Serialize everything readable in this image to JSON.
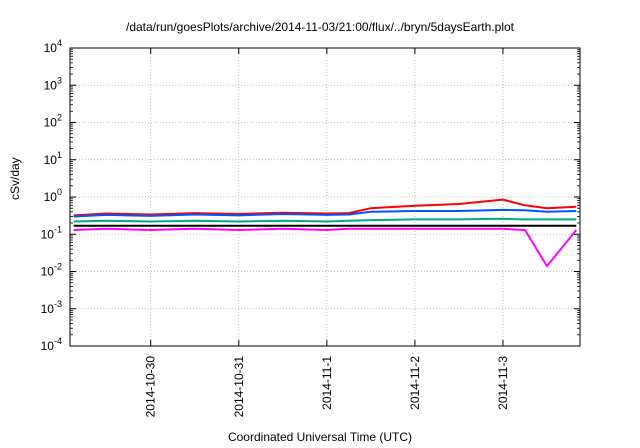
{
  "chart_data": {
    "type": "line",
    "title": "/data/run/goesPlots/archive/2014-11-03/21:00/flux/../bryn/5daysEarth.plot",
    "xlabel": "Coordinated Universal Time (UTC)",
    "ylabel": "cSv/day",
    "yscale": "log",
    "ylim": [
      0.0001,
      10000
    ],
    "xlim": [
      "2014-10-29 02:00",
      "2014-11-03 21:00"
    ],
    "grid": true,
    "legend": "none",
    "xticks": [
      "2014-10-30",
      "2014-10-31",
      "2014-11-1",
      "2014-11-2",
      "2014-11-3"
    ],
    "yticks": [
      {
        "base": "10",
        "exp": "-4"
      },
      {
        "base": "10",
        "exp": "-3"
      },
      {
        "base": "10",
        "exp": "-2"
      },
      {
        "base": "10",
        "exp": "-1"
      },
      {
        "base": "10",
        "exp": "0"
      },
      {
        "base": "10",
        "exp": "1"
      },
      {
        "base": "10",
        "exp": "2"
      },
      {
        "base": "10",
        "exp": "3"
      },
      {
        "base": "10",
        "exp": "4"
      }
    ],
    "x": [
      "2014-10-29 03:00",
      "2014-10-29 12:00",
      "2014-10-30 00:00",
      "2014-10-30 12:00",
      "2014-10-31 00:00",
      "2014-10-31 12:00",
      "2014-11-01 00:00",
      "2014-11-01 06:00",
      "2014-11-01 12:00",
      "2014-11-02 00:00",
      "2014-11-02 12:00",
      "2014-11-03 00:00",
      "2014-11-03 06:00",
      "2014-11-03 12:00",
      "2014-11-03 20:00"
    ],
    "series": [
      {
        "color": "#ff0000",
        "values": [
          0.32,
          0.36,
          0.34,
          0.37,
          0.35,
          0.38,
          0.36,
          0.37,
          0.5,
          0.58,
          0.65,
          0.85,
          0.6,
          0.5,
          0.55
        ]
      },
      {
        "color": "#0055ff",
        "values": [
          0.3,
          0.33,
          0.31,
          0.34,
          0.32,
          0.35,
          0.33,
          0.34,
          0.4,
          0.42,
          0.42,
          0.45,
          0.44,
          0.4,
          0.42
        ]
      },
      {
        "color": "#00aa88",
        "values": [
          0.22,
          0.23,
          0.22,
          0.23,
          0.22,
          0.23,
          0.22,
          0.23,
          0.24,
          0.25,
          0.25,
          0.26,
          0.25,
          0.25,
          0.25
        ]
      },
      {
        "color": "#000000",
        "values": [
          0.17,
          0.17,
          0.17,
          0.17,
          0.17,
          0.17,
          0.17,
          0.17,
          0.17,
          0.17,
          0.17,
          0.17,
          0.17,
          0.17,
          0.17
        ]
      },
      {
        "color": "#ff00ff",
        "values": [
          0.13,
          0.14,
          0.13,
          0.14,
          0.13,
          0.14,
          0.13,
          0.14,
          0.14,
          0.14,
          0.14,
          0.14,
          0.13,
          0.014,
          0.13
        ]
      }
    ]
  }
}
